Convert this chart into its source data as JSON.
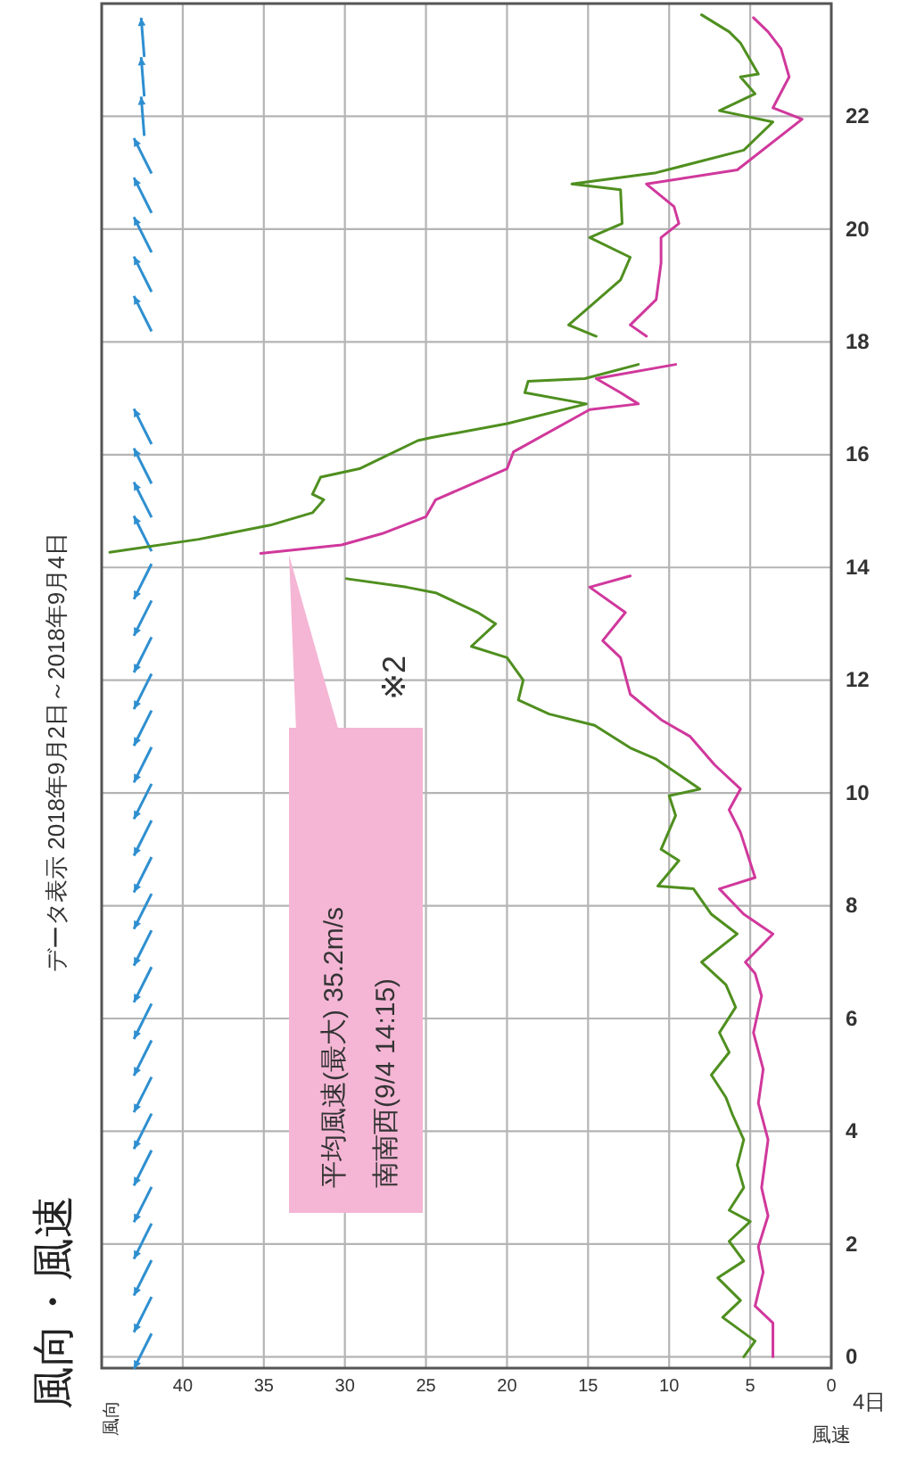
{
  "chart_data": {
    "type": "line",
    "title": "風向・風速",
    "subtitle": "データ表示 2018年9月2日～2018年9月4日",
    "xlabel": "風速",
    "ylabel": "4日",
    "xlim": [
      45,
      0
    ],
    "xticks": [
      40,
      35,
      30,
      25,
      20,
      15,
      10,
      5,
      0
    ],
    "ylim": [
      -0.2,
      24
    ],
    "yticks": [
      0,
      2,
      4,
      6,
      8,
      10,
      12,
      14,
      16,
      18,
      20,
      22
    ],
    "grid": true,
    "series": [
      {
        "color": "#4f8f1f",
        "values": [
          0,
          0.28,
          0.7,
          1.0,
          1.4,
          1.7,
          2.05,
          2.4,
          2.6,
          3.0,
          3.4,
          3.85,
          4.3,
          4.6,
          5.0,
          5.4,
          5.75,
          6.2,
          6.6,
          7.0,
          7.5,
          7.85,
          8.3,
          8.35,
          8.8,
          9.0,
          9.6,
          9.95,
          10.07,
          10.6,
          10.8,
          11.2,
          11.4,
          11.65,
          12.0,
          12.4,
          12.6,
          13.0,
          13.2,
          13.55,
          13.65,
          13.8,
          null,
          14.27,
          14.5,
          14.75,
          14.97,
          15.2,
          15.3,
          15.6,
          15.75,
          16.25,
          16.3,
          16.55,
          16.9,
          17.1,
          17.3,
          17.35,
          17.6,
          null,
          18.1,
          18.3,
          18.7,
          19.1,
          19.5,
          19.85,
          20.1,
          20.7,
          20.8,
          21.0,
          21.4,
          21.9,
          22.1,
          22.4,
          22.7,
          22.75,
          23.3,
          23.5,
          23.8
        ],
        "x": [
          5.4,
          4.7,
          6.7,
          5.6,
          7.0,
          5.4,
          6.3,
          5.0,
          6.3,
          5.4,
          5.8,
          5.4,
          6.1,
          6.5,
          7.4,
          6.3,
          6.9,
          5.9,
          6.5,
          8.0,
          5.8,
          7.4,
          8.5,
          10.7,
          9.4,
          10.5,
          9.6,
          10.0,
          8.1,
          10.8,
          12.4,
          14.6,
          17.4,
          19.3,
          19.0,
          20.0,
          22.2,
          20.7,
          21.8,
          24.4,
          26.2,
          29.9,
          null,
          44.5,
          39,
          34.6,
          32,
          31.3,
          32,
          31.5,
          29.1,
          25.5,
          24.7,
          20.0,
          15.1,
          18.9,
          18.7,
          15.2,
          11.9,
          null,
          14.5,
          16.2,
          14.6,
          13.0,
          12.4,
          14.9,
          12.9,
          13.0,
          16.0,
          10.8,
          5.4,
          3.6,
          6.9,
          4.7,
          5.6,
          4.5,
          5.6,
          6.3,
          8.0
        ]
      },
      {
        "color": "#d0389c",
        "values": [
          0,
          0.6,
          0.9,
          1.5,
          1.95,
          2.5,
          3.0,
          3.85,
          4.5,
          5.1,
          5.75,
          6.4,
          6.8,
          7.0,
          7.5,
          7.85,
          8.3,
          8.5,
          9.3,
          9.7,
          10.07,
          10.5,
          11.0,
          11.3,
          11.75,
          12.4,
          12.7,
          13.2,
          13.65,
          13.85,
          null,
          14.25,
          14.4,
          14.6,
          14.9,
          15.2,
          15.75,
          16.05,
          16.8,
          16.9,
          17.1,
          17.35,
          17.6,
          null,
          18.1,
          18.3,
          18.75,
          19.4,
          19.85,
          20.1,
          20.4,
          20.8,
          21.05,
          21.95,
          22.15,
          22.7,
          23.2,
          23.5,
          23.75
        ],
        "x": [
          3.6,
          3.6,
          4.7,
          4.2,
          4.5,
          3.9,
          4.3,
          3.9,
          4.5,
          4.2,
          4.8,
          4.3,
          4.7,
          5.3,
          3.6,
          5.4,
          6.9,
          4.7,
          5.6,
          6.3,
          5.6,
          7.2,
          8.7,
          10.5,
          12.4,
          13.0,
          14.1,
          12.7,
          14.9,
          12.4,
          null,
          35.2,
          30.2,
          27.7,
          25.0,
          24.4,
          20.0,
          19.6,
          14.9,
          11.9,
          13.0,
          14.5,
          9.6,
          null,
          11.4,
          12.4,
          10.8,
          10.5,
          10.5,
          9.4,
          9.7,
          11.4,
          5.8,
          1.8,
          3.6,
          2.6,
          3.1,
          3.9,
          4.8
        ]
      }
    ],
    "annotations": [
      "風向",
      "平均風速(最大) 35.2m/s\n南南西(9/4 14:15)",
      "※2"
    ]
  }
}
